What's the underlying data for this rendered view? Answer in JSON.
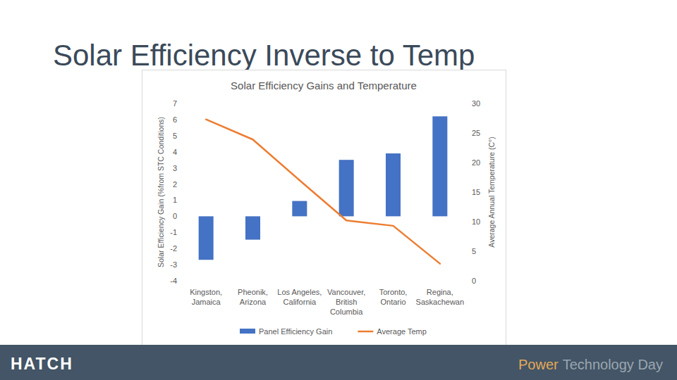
{
  "slide": {
    "title": "Solar Efficiency Inverse to Temp",
    "logo": "HATCH",
    "footer": [
      "Power",
      "Technology Day"
    ]
  },
  "chart_data": {
    "type": "bar",
    "title": "Solar Efficiency Gains and Temperature",
    "categories": [
      "Kingston,\nJamaica",
      "Pheonik,\nArizona",
      "Los Angeles,\nCalifornia",
      "Vancouver,\nBritish\nColumbia",
      "Toronto,\nOntario",
      "Regina,\nSaskachewan"
    ],
    "y_label": "Solar Efficiency Gain (%from STC Conditions)",
    "y2_label": "Average Annual Temperature (C°)",
    "ylim": [
      -4,
      7
    ],
    "yticks": [
      -4,
      -3,
      -2,
      -1,
      0,
      1,
      2,
      3,
      4,
      5,
      6,
      7
    ],
    "y2lim": [
      0,
      30
    ],
    "y2ticks": [
      0,
      5,
      10,
      15,
      20,
      25,
      30
    ],
    "grid": false,
    "legend": "bottom",
    "series": [
      {
        "name": "Panel Efficiency Gain",
        "type": "bar",
        "color": "#4472c4",
        "values": [
          -2.7,
          -1.45,
          0.95,
          3.5,
          3.9,
          6.2
        ]
      },
      {
        "name": "Average Temp",
        "type": "line",
        "color": "#ed7d31",
        "axis": "y2",
        "values": [
          27.3,
          23.9,
          17.0,
          10.2,
          9.3,
          2.9
        ]
      }
    ]
  }
}
